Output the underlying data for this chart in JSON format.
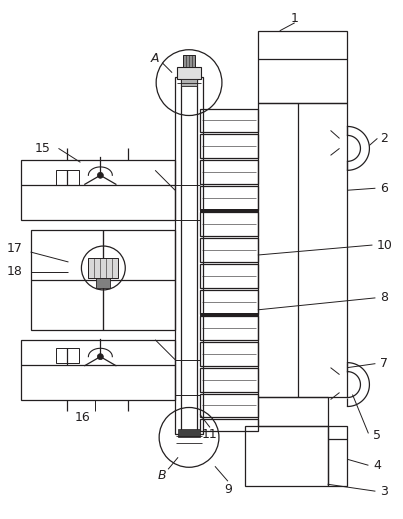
{
  "bg_color": "#ffffff",
  "line_color": "#231f20",
  "fig_width": 4.03,
  "fig_height": 5.19,
  "dpi": 100
}
